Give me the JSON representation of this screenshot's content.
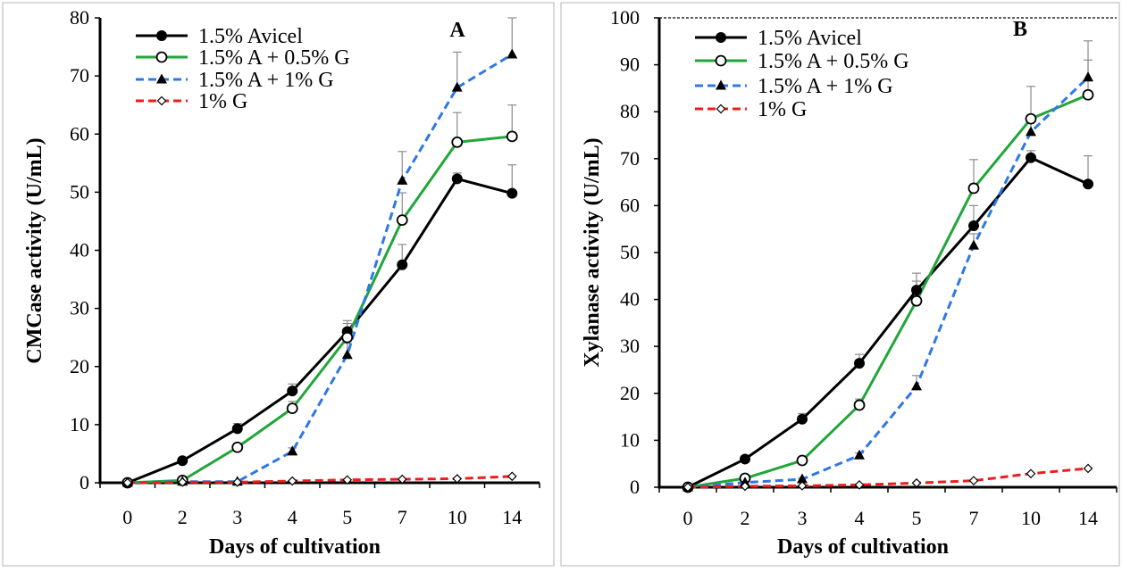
{
  "chart_data": [
    {
      "type": "line",
      "title": "A",
      "xlabel": "Days of cultivation",
      "ylabel": "CMCase activity (U/mL)",
      "ylim": [
        0,
        80
      ],
      "yticks": [
        0,
        10,
        20,
        30,
        40,
        50,
        60,
        70,
        80
      ],
      "categories": [
        "0",
        "2",
        "3",
        "4",
        "5",
        "7",
        "10",
        "14"
      ],
      "grid": false,
      "legend_position": "top-left",
      "series": [
        {
          "name": "1.5% Avicel",
          "color": "#000000",
          "marker_color": "#000000",
          "line_style": "solid",
          "marker": "circle-filled",
          "values": [
            0,
            3.8,
            9.3,
            15.8,
            26.0,
            37.5,
            52.3,
            49.8
          ],
          "errors": [
            0,
            0.3,
            0.9,
            1.2,
            1.9,
            3.5,
            1.0,
            4.9
          ]
        },
        {
          "name": "1.5% A + 0.5% G",
          "color": "#21a63a",
          "marker_color": "#000000",
          "line_style": "solid",
          "marker": "circle-open",
          "values": [
            0,
            0.4,
            6.1,
            12.8,
            25.0,
            45.2,
            58.6,
            59.6
          ],
          "errors": [
            0,
            0.2,
            0.6,
            1.2,
            2.4,
            4.7,
            5.1,
            5.4
          ]
        },
        {
          "name": "1.5% A + 1% G",
          "color": "#2e78e6",
          "marker_color": "#000000",
          "line_style": "dashed",
          "marker": "triangle-filled",
          "values": [
            0,
            0.2,
            0.2,
            5.4,
            22.0,
            52.0,
            68.0,
            73.7
          ],
          "errors": [
            0,
            0,
            0,
            0.6,
            2.0,
            5.0,
            6.1,
            6.3
          ]
        },
        {
          "name": "1% G",
          "color": "#ee1c1c",
          "marker_color": "#000000",
          "line_style": "dashed",
          "marker": "diamond-open",
          "values": [
            0,
            0.1,
            0.1,
            0.3,
            0.5,
            0.6,
            0.7,
            1.1
          ],
          "errors": [
            0,
            0,
            0,
            0,
            0,
            0,
            0,
            0
          ]
        }
      ]
    },
    {
      "type": "line",
      "title": "B",
      "xlabel": "Days of cultivation",
      "ylabel": "Xylanase activity (U/mL)",
      "ylim": [
        0,
        100
      ],
      "yticks": [
        0,
        10,
        20,
        30,
        40,
        50,
        60,
        70,
        80,
        90,
        100
      ],
      "categories": [
        "0",
        "2",
        "3",
        "4",
        "5",
        "7",
        "10",
        "14"
      ],
      "grid": false,
      "legend_position": "top-left",
      "series": [
        {
          "name": "1.5% Avicel",
          "color": "#000000",
          "marker_color": "#000000",
          "line_style": "solid",
          "marker": "circle-filled",
          "values": [
            0,
            6.0,
            14.5,
            26.4,
            42.0,
            55.7,
            70.2,
            64.6
          ],
          "errors": [
            0,
            0.4,
            1.2,
            1.9,
            3.6,
            4.3,
            1.5,
            6.0
          ]
        },
        {
          "name": "1.5% A + 0.5% G",
          "color": "#21a63a",
          "marker_color": "#000000",
          "line_style": "solid",
          "marker": "circle-open",
          "values": [
            0,
            1.9,
            5.7,
            17.5,
            39.7,
            63.7,
            78.5,
            83.6
          ],
          "errors": [
            0,
            0.2,
            0.6,
            1.3,
            4.2,
            6.1,
            6.9,
            7.4
          ]
        },
        {
          "name": "1.5% A + 1% G",
          "color": "#2e78e6",
          "marker_color": "#000000",
          "line_style": "dashed",
          "marker": "triangle-filled",
          "values": [
            0,
            1.0,
            1.7,
            6.8,
            21.5,
            51.5,
            75.7,
            87.3
          ],
          "errors": [
            0,
            0.1,
            0.2,
            0.5,
            2.3,
            2.5,
            3.0,
            7.8
          ]
        },
        {
          "name": "1% G",
          "color": "#ee1c1c",
          "marker_color": "#000000",
          "line_style": "dashed",
          "marker": "diamond-open",
          "values": [
            0,
            0.2,
            0.3,
            0.5,
            0.9,
            1.4,
            2.9,
            4.0
          ],
          "errors": [
            0,
            0,
            0,
            0,
            0,
            0,
            0,
            0
          ]
        }
      ]
    }
  ]
}
